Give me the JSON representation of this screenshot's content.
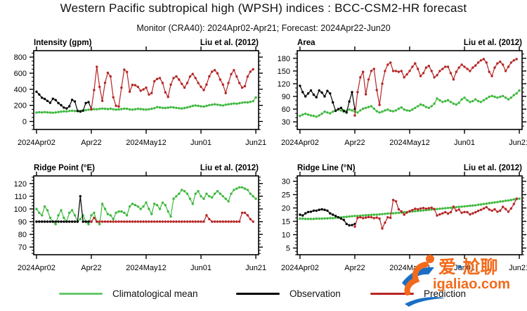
{
  "page": {
    "title": "Western Pacific subtropical high (WPSH) indices : BCC-CSM2-HR forecast",
    "subtitle": "Monitor (CRA40): 2024Apr02-Apr21; Forecast: 2024Apr22-Jun20"
  },
  "colors": {
    "climatology": "#3fb93f",
    "observation": "#000000",
    "prediction": "#b62525",
    "frame": "#000000"
  },
  "legend": {
    "items": [
      {
        "label": "Climatological mean",
        "color": "#66c96a"
      },
      {
        "label": "Observation",
        "color": "#000000"
      },
      {
        "label": "Prediction",
        "color": "#b62525"
      }
    ]
  },
  "watermark": {
    "cn_left": "爱",
    "dot": "·",
    "cn_right": "尬聊",
    "domain": "igaliao.com",
    "orange": "#f26a1b",
    "blue": "#1a6fc4"
  },
  "chart_data": [
    {
      "type": "line",
      "title": "Intensity (gpm)",
      "credit": "Liu et al. (2012)",
      "x": {
        "min": -1,
        "max": 81,
        "ticks": [
          {
            "day": 0,
            "label": "2024Apr02"
          },
          {
            "day": 20,
            "label": "Apr22"
          },
          {
            "day": 40,
            "label": "2024May12"
          },
          {
            "day": 60,
            "label": "Jun01"
          },
          {
            "day": 80,
            "label": "Jun21"
          }
        ]
      },
      "y": {
        "min": -100,
        "max": 880,
        "major_ticks": [
          0,
          200,
          400,
          600,
          800
        ],
        "minor_step": 50
      },
      "series": [
        {
          "name": "Climatological mean",
          "color_key": "climatology",
          "start_day": 0,
          "values": [
            110,
            114,
            112,
            116,
            113,
            110,
            108,
            112,
            117,
            121,
            126,
            124,
            129,
            133,
            129,
            127,
            131,
            136,
            140,
            146,
            148,
            153,
            151,
            156,
            160,
            157,
            154,
            158,
            151,
            147,
            149,
            154,
            159,
            157,
            149,
            147,
            151,
            157,
            154,
            149,
            147,
            151,
            157,
            164,
            178,
            174,
            169,
            167,
            171,
            177,
            174,
            169,
            164,
            161,
            167,
            174,
            183,
            193,
            198,
            193,
            188,
            184,
            193,
            203,
            208,
            213,
            208,
            203,
            198,
            208,
            213,
            218,
            223,
            220,
            226,
            233,
            238,
            236,
            243,
            252,
            298
          ]
        },
        {
          "name": "Observation",
          "color_key": "observation",
          "start_day": 0,
          "values": [
            370,
            335,
            295,
            280,
            255,
            232,
            282,
            266,
            228,
            202,
            172,
            162,
            188,
            268,
            248,
            132,
            122,
            134,
            228,
            240,
            152
          ]
        },
        {
          "name": "Prediction",
          "color_key": "prediction",
          "start_day": 20,
          "values": [
            152,
            390,
            680,
            430,
            255,
            480,
            605,
            560,
            300,
            195,
            185,
            420,
            645,
            615,
            370,
            455,
            450,
            430,
            382,
            398,
            420,
            335,
            352,
            500,
            528,
            540,
            478,
            362,
            305,
            458,
            540,
            560,
            520,
            468,
            420,
            478,
            558,
            590,
            540,
            478,
            430,
            390,
            458,
            560,
            618,
            638,
            598,
            520,
            458,
            352,
            478,
            588,
            638,
            558,
            478,
            420,
            438,
            558,
            618,
            648
          ]
        }
      ]
    },
    {
      "type": "line",
      "title": "Area",
      "credit": "Liu et al. (2012)",
      "x": {
        "min": -1,
        "max": 81,
        "ticks": [
          {
            "day": 0,
            "label": "2024Apr02"
          },
          {
            "day": 20,
            "label": "Apr22"
          },
          {
            "day": 40,
            "label": "2024May12"
          },
          {
            "day": 60,
            "label": "Jun01"
          },
          {
            "day": 80,
            "label": "Jun21"
          }
        ]
      },
      "y": {
        "min": 12,
        "max": 198,
        "major_ticks": [
          30,
          60,
          90,
          120,
          150,
          180
        ],
        "minor_step": 10
      },
      "series": [
        {
          "name": "Climatological mean",
          "color_key": "climatology",
          "start_day": 0,
          "values": [
            44,
            47,
            49,
            47,
            45,
            44,
            42,
            45,
            49,
            54,
            52,
            50,
            54,
            57,
            59,
            57,
            54,
            56,
            59,
            57,
            54,
            52,
            57,
            61,
            63,
            65,
            67,
            61,
            55,
            52,
            54,
            57,
            59,
            56,
            55,
            57,
            61,
            64,
            59,
            57,
            56,
            59,
            63,
            67,
            71,
            69,
            65,
            63,
            67,
            73,
            85,
            81,
            77,
            79,
            81,
            77,
            73,
            71,
            75,
            83,
            87,
            81,
            77,
            79,
            83,
            79,
            77,
            81,
            85,
            89,
            91,
            89,
            87,
            89,
            91,
            87,
            83,
            87,
            93,
            97,
            104
          ]
        },
        {
          "name": "Observation",
          "color_key": "observation",
          "start_day": 0,
          "values": [
            115,
            100,
            90,
            97,
            104,
            94,
            88,
            104,
            99,
            90,
            103,
            97,
            76,
            56,
            60,
            63,
            56,
            52,
            78,
            100,
            60
          ]
        },
        {
          "name": "Prediction",
          "color_key": "prediction",
          "start_day": 20,
          "values": [
            45,
            100,
            135,
            148,
            95,
            130,
            150,
            155,
            105,
            70,
            120,
            150,
            165,
            170,
            150,
            150,
            148,
            150,
            135,
            142,
            150,
            160,
            168,
            155,
            138,
            145,
            158,
            162,
            150,
            135,
            140,
            150,
            155,
            160,
            160,
            145,
            130,
            148,
            158,
            165,
            160,
            155,
            150,
            158,
            163,
            170,
            175,
            178,
            170,
            148,
            138,
            158,
            168,
            172,
            165,
            150,
            160,
            170,
            175,
            178
          ]
        }
      ]
    },
    {
      "type": "line",
      "title": "Ridge Point (°E)",
      "credit": "Liu et al. (2012)",
      "x": {
        "min": -1,
        "max": 81,
        "ticks": [
          {
            "day": 0,
            "label": "2024Apr02"
          },
          {
            "day": 20,
            "label": "Apr22"
          },
          {
            "day": 40,
            "label": "2024May12"
          },
          {
            "day": 60,
            "label": "Jun01"
          },
          {
            "day": 80,
            "label": "Jun21"
          }
        ]
      },
      "y": {
        "min": 64,
        "max": 126,
        "major_ticks": [
          70,
          80,
          90,
          100,
          110,
          120
        ],
        "minor_step": 2.5
      },
      "series": [
        {
          "name": "Climatological mean",
          "color_key": "climatology",
          "start_day": 0,
          "values": [
            100,
            97,
            95,
            102,
            99,
            93,
            90,
            88,
            95,
            99,
            93,
            90,
            97,
            99,
            95,
            90,
            92,
            95,
            90,
            88,
            95,
            97,
            90,
            88,
            104,
            100,
            96,
            95,
            92,
            97,
            98,
            98,
            97,
            95,
            102,
            104,
            103,
            102,
            100,
            102,
            105,
            100,
            96,
            104,
            103,
            100,
            105,
            103,
            98,
            94,
            108,
            110,
            112,
            115,
            114,
            112,
            108,
            104,
            112,
            114,
            110,
            108,
            112,
            110,
            109,
            112,
            114,
            112,
            110,
            108,
            106,
            112,
            115,
            116,
            117,
            117,
            116,
            115,
            112,
            110,
            108
          ]
        },
        {
          "name": "Observation",
          "color_key": "observation",
          "start_day": 0,
          "values": [
            90,
            90,
            90,
            90,
            90,
            90,
            90,
            90,
            90,
            90,
            90,
            90,
            90,
            90,
            90,
            90,
            110,
            90,
            90,
            90,
            90
          ]
        },
        {
          "name": "Prediction",
          "color_key": "prediction",
          "start_day": 20,
          "values": [
            90,
            93,
            90,
            90,
            90,
            90,
            90,
            90,
            90,
            90,
            90,
            90,
            90,
            90,
            90,
            90,
            90,
            90,
            90,
            90,
            90,
            90,
            90,
            90,
            90,
            90,
            90,
            90,
            90,
            90,
            90,
            90,
            90,
            90,
            90,
            90,
            90,
            90,
            90,
            90,
            90,
            90,
            95,
            92,
            90,
            90,
            90,
            90,
            90,
            90,
            90,
            90,
            90,
            90,
            90,
            97,
            97,
            95,
            92,
            90
          ]
        }
      ]
    },
    {
      "type": "line",
      "title": "Ridge Line (°N)",
      "credit": "Liu et al. (2012)",
      "x": {
        "min": -1,
        "max": 81,
        "ticks": [
          {
            "day": 0,
            "label": "2024Apr02"
          },
          {
            "day": 20,
            "label": "Apr22"
          },
          {
            "day": 40,
            "label": "2024May12"
          },
          {
            "day": 60,
            "label": "Jun01"
          },
          {
            "day": 80,
            "label": "Jun21"
          }
        ]
      },
      "y": {
        "min": 2.5,
        "max": 32,
        "major_ticks": [
          5,
          10,
          15,
          20,
          25,
          30
        ],
        "minor_step": 1.25
      },
      "series": [
        {
          "name": "Climatological mean",
          "color_key": "climatology",
          "start_day": 0,
          "values": [
            16.0,
            16.0,
            15.9,
            15.9,
            15.9,
            15.9,
            16.0,
            16.0,
            16.0,
            16.1,
            16.1,
            16.2,
            16.2,
            16.3,
            16.4,
            16.5,
            16.6,
            16.7,
            16.8,
            16.9,
            17.0,
            17.0,
            17.1,
            17.2,
            17.3,
            17.3,
            17.4,
            17.5,
            17.5,
            17.6,
            17.7,
            17.8,
            17.9,
            18.0,
            18.0,
            18.1,
            18.2,
            18.3,
            18.4,
            18.5,
            18.6,
            18.7,
            18.8,
            18.9,
            19.0,
            19.1,
            19.2,
            19.3,
            19.4,
            19.5,
            19.6,
            19.7,
            19.8,
            19.9,
            20.0,
            20.1,
            20.2,
            20.3,
            20.4,
            20.5,
            20.6,
            20.7,
            20.8,
            20.9,
            21.0,
            21.2,
            21.3,
            21.5,
            21.6,
            21.8,
            21.9,
            22.1,
            22.2,
            22.4,
            22.5,
            22.7,
            22.8,
            23.0,
            23.2,
            23.3,
            23.5
          ]
        },
        {
          "name": "Observation",
          "color_key": "observation",
          "start_day": 0,
          "values": [
            17.5,
            17.2,
            18.0,
            18.5,
            18.6,
            19.0,
            19.0,
            19.3,
            19.5,
            19.3,
            19.0,
            18.0,
            17.5,
            17.0,
            16.5,
            16.0,
            15.5,
            14.0,
            13.5,
            13.6,
            14.0
          ]
        },
        {
          "name": "Prediction",
          "color_key": "prediction",
          "start_day": 20,
          "values": [
            13.0,
            16.3,
            16.5,
            16.2,
            16.4,
            16.6,
            16.5,
            16.2,
            16.4,
            16.0,
            12.3,
            14.5,
            16.5,
            16.3,
            23.0,
            22.5,
            19.5,
            18.7,
            17.5,
            18.3,
            18.8,
            19.2,
            19.7,
            19.5,
            19.8,
            20.0,
            19.7,
            19.9,
            20.1,
            19.6,
            17.2,
            17.6,
            18.0,
            18.4,
            17.9,
            18.4,
            20.5,
            19.0,
            19.4,
            18.2,
            18.5,
            18.4,
            17.6,
            18.0,
            18.4,
            18.9,
            19.3,
            19.8,
            20.3,
            19.4,
            19.0,
            19.5,
            18.6,
            19.0,
            20.4,
            19.6,
            18.6,
            19.8,
            21.5,
            23.5
          ]
        }
      ]
    }
  ]
}
